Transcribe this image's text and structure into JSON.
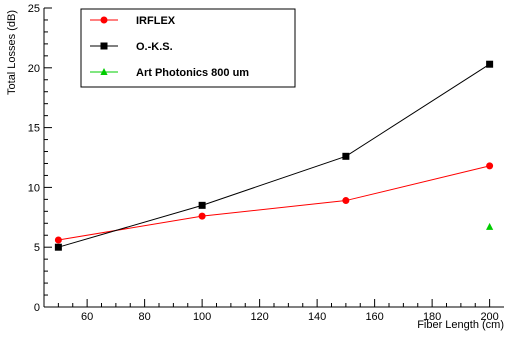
{
  "chart_data": {
    "type": "line",
    "xlabel": "Fiber Length (cm)",
    "ylabel": "Total Losses (dB)",
    "xlim": [
      45,
      205
    ],
    "ylim": [
      0,
      25
    ],
    "xticks": [
      60,
      80,
      100,
      120,
      140,
      160,
      180,
      200
    ],
    "yticks": [
      0,
      5,
      10,
      15,
      20,
      25
    ],
    "grid": false,
    "legend_position": "top-left",
    "series": [
      {
        "name": "IRFLEX",
        "color": "#ff0000",
        "marker": "circle",
        "line": true,
        "x": [
          50,
          100,
          150,
          200
        ],
        "y": [
          5.6,
          7.6,
          8.9,
          11.8
        ]
      },
      {
        "name": "O.-K.S.",
        "color": "#000000",
        "marker": "square",
        "line": true,
        "x": [
          50,
          100,
          150,
          200
        ],
        "y": [
          5.0,
          8.5,
          12.6,
          20.3
        ]
      },
      {
        "name": "Art Photonics 800 um",
        "color": "#00cc00",
        "marker": "triangle",
        "line": false,
        "x": [
          200
        ],
        "y": [
          6.7
        ]
      }
    ]
  }
}
